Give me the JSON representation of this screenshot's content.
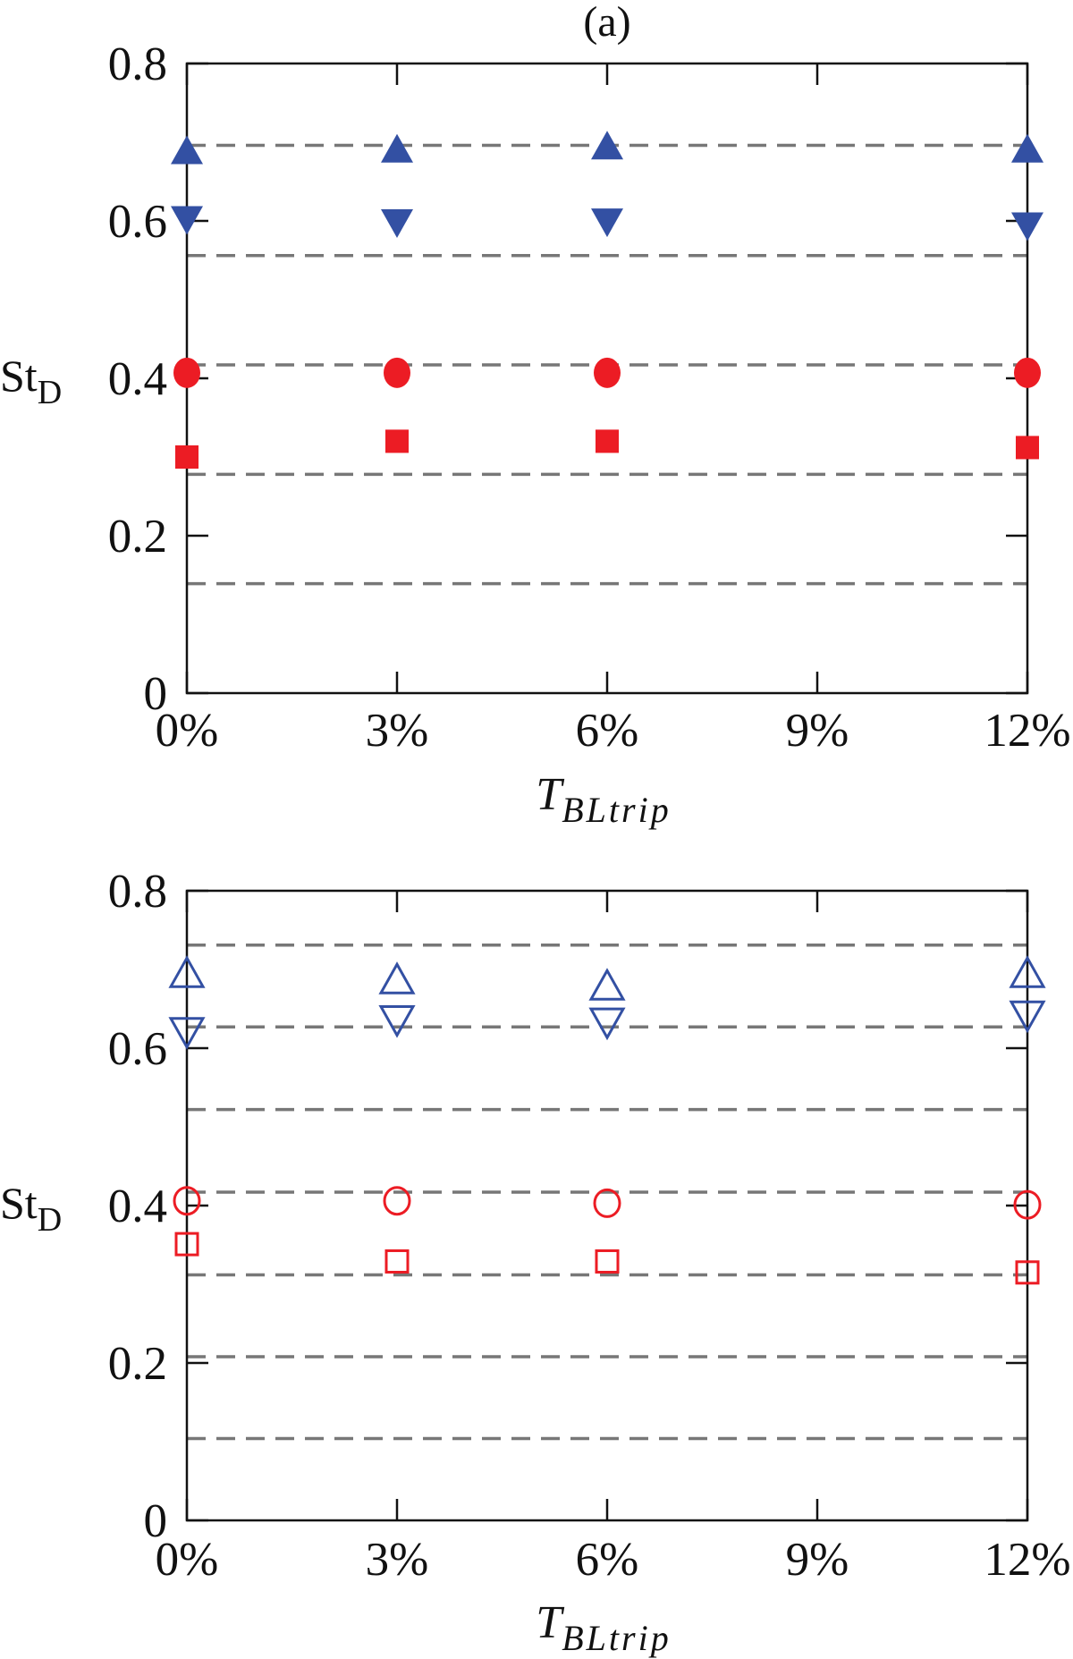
{
  "chart_data": [
    {
      "type": "scatter",
      "title": "(a)",
      "xlabel": "T",
      "xlabel_sub": "BLtrip",
      "ylabel": "St",
      "ylabel_sub": "D",
      "ylim": [
        0,
        0.8
      ],
      "xlim": [
        0,
        12
      ],
      "xticks": [
        0,
        3,
        6,
        9,
        12
      ],
      "xtick_labels": [
        "0%",
        "3%",
        "6%",
        "9%",
        "12%"
      ],
      "yticks": [
        0,
        0.2,
        0.4,
        0.6,
        0.8
      ],
      "ytick_labels": [
        "0",
        "0.2",
        "0.4",
        "0.6",
        "0.8"
      ],
      "reference_lines": [
        0.139,
        0.278,
        0.417,
        0.556,
        0.696
      ],
      "grid": false,
      "series": [
        {
          "name": "up-triangle",
          "marker": "triangle-up",
          "filled": true,
          "color": "#3350a3",
          "x": [
            0,
            3,
            6,
            12
          ],
          "y": [
            0.686,
            0.688,
            0.692,
            0.688
          ]
        },
        {
          "name": "down-triangle",
          "marker": "triangle-down",
          "filled": true,
          "color": "#3350a3",
          "x": [
            0,
            3,
            6,
            12
          ],
          "y": [
            0.605,
            0.601,
            0.602,
            0.597
          ]
        },
        {
          "name": "circle",
          "marker": "circle",
          "filled": true,
          "color": "#ec1c24",
          "x": [
            0,
            3,
            6,
            12
          ],
          "y": [
            0.407,
            0.407,
            0.407,
            0.407
          ]
        },
        {
          "name": "square",
          "marker": "square",
          "filled": true,
          "color": "#ec1c24",
          "x": [
            0,
            3,
            6,
            12
          ],
          "y": [
            0.3,
            0.32,
            0.32,
            0.312
          ]
        }
      ]
    },
    {
      "type": "scatter",
      "title": "",
      "xlabel": "T",
      "xlabel_sub": "BLtrip",
      "ylabel": "St",
      "ylabel_sub": "D",
      "ylim": [
        0,
        0.8
      ],
      "xlim": [
        0,
        12
      ],
      "xticks": [
        0,
        3,
        6,
        9,
        12
      ],
      "xtick_labels": [
        "0%",
        "3%",
        "6%",
        "9%",
        "12%"
      ],
      "yticks": [
        0,
        0.2,
        0.4,
        0.6,
        0.8
      ],
      "ytick_labels": [
        "0",
        "0.2",
        "0.4",
        "0.6",
        "0.8"
      ],
      "reference_lines": [
        0.104,
        0.208,
        0.312,
        0.417,
        0.522,
        0.627,
        0.731
      ],
      "grid": false,
      "series": [
        {
          "name": "up-triangle",
          "marker": "triangle-up",
          "filled": false,
          "color": "#3350a3",
          "x": [
            0,
            3,
            6,
            12
          ],
          "y": [
            0.692,
            0.684,
            0.676,
            0.692
          ]
        },
        {
          "name": "down-triangle",
          "marker": "triangle-down",
          "filled": false,
          "color": "#3350a3",
          "x": [
            0,
            3,
            6,
            12
          ],
          "y": [
            0.624,
            0.639,
            0.636,
            0.645
          ]
        },
        {
          "name": "circle",
          "marker": "circle",
          "filled": false,
          "color": "#ec1c24",
          "x": [
            0,
            3,
            6,
            12
          ],
          "y": [
            0.406,
            0.406,
            0.403,
            0.401
          ]
        },
        {
          "name": "square",
          "marker": "square",
          "filled": false,
          "color": "#ec1c24",
          "x": [
            0,
            3,
            6,
            12
          ],
          "y": [
            0.351,
            0.329,
            0.329,
            0.315
          ]
        }
      ]
    }
  ]
}
